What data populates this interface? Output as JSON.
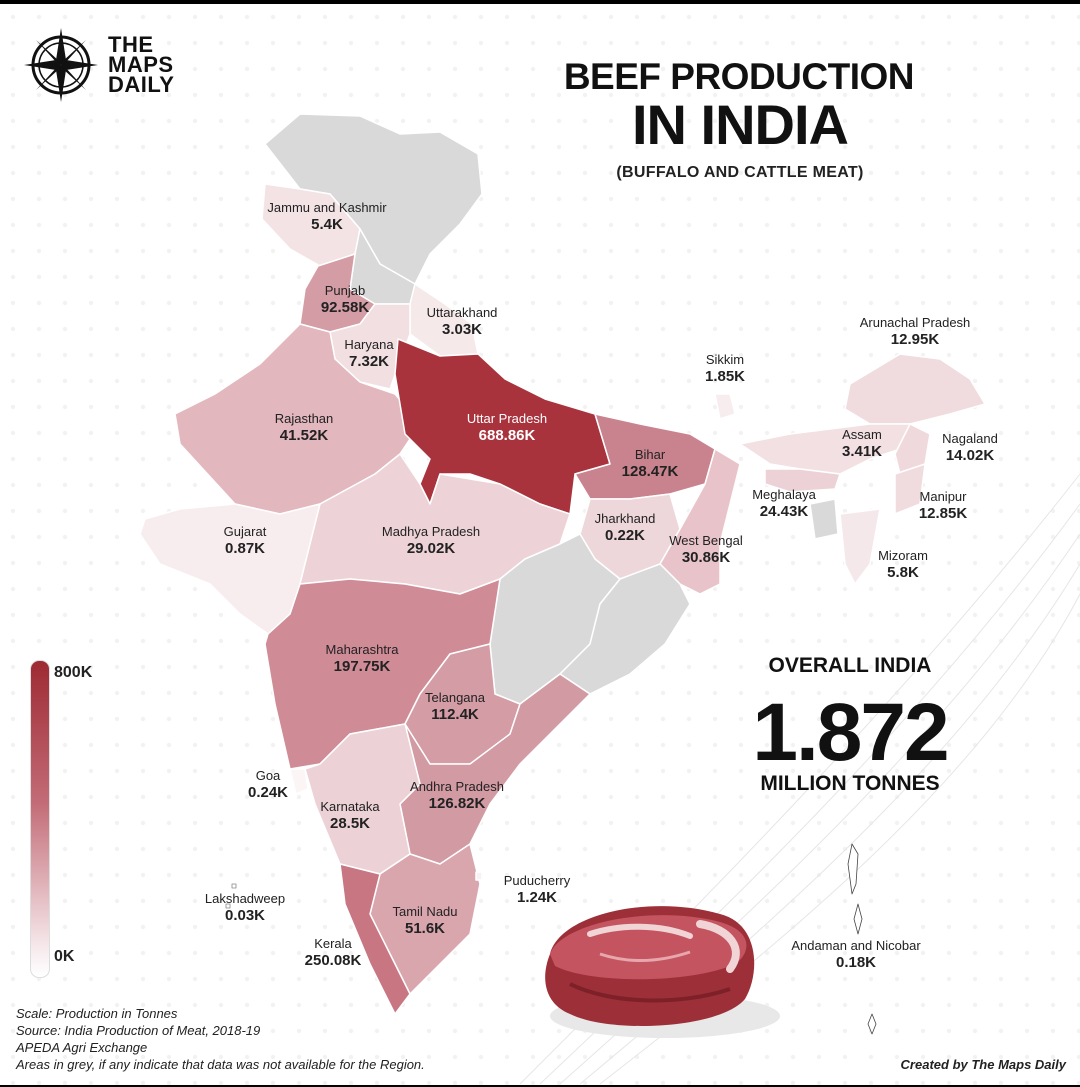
{
  "brand": {
    "line1": "THE",
    "line2": "MAPS",
    "line3": "DAILY",
    "icon": "compass-icon"
  },
  "title": {
    "line1": "BEEF PRODUCTION",
    "line2": "IN INDIA",
    "subtitle": "(BUFFALO AND CATTLE MEAT)"
  },
  "legend": {
    "max_label": "800K",
    "min_label": "0K",
    "max_value": 800000,
    "min_value": 0,
    "color_high": "#9e2a33",
    "color_low": "#ffffff",
    "no_data_color": "#d9d9d9"
  },
  "overall": {
    "label": "OVERALL INDIA",
    "value": "1.872",
    "unit": "MILLION TONNES"
  },
  "regions": [
    {
      "name": "Jammu and Kashmir",
      "value": "5.4K",
      "tonnes": 5400
    },
    {
      "name": "Punjab",
      "value": "92.58K",
      "tonnes": 92580
    },
    {
      "name": "Uttarakhand",
      "value": "3.03K",
      "tonnes": 3030
    },
    {
      "name": "Haryana",
      "value": "7.32K",
      "tonnes": 7320
    },
    {
      "name": "Rajasthan",
      "value": "41.52K",
      "tonnes": 41520
    },
    {
      "name": "Uttar Pradesh",
      "value": "688.86K",
      "tonnes": 688860
    },
    {
      "name": "Bihar",
      "value": "128.47K",
      "tonnes": 128470
    },
    {
      "name": "Sikkim",
      "value": "1.85K",
      "tonnes": 1850
    },
    {
      "name": "Arunachal Pradesh",
      "value": "12.95K",
      "tonnes": 12950
    },
    {
      "name": "Assam",
      "value": "3.41K",
      "tonnes": 3410
    },
    {
      "name": "Nagaland",
      "value": "14.02K",
      "tonnes": 14020
    },
    {
      "name": "Meghalaya",
      "value": "24.43K",
      "tonnes": 24430
    },
    {
      "name": "Manipur",
      "value": "12.85K",
      "tonnes": 12850
    },
    {
      "name": "Mizoram",
      "value": "5.8K",
      "tonnes": 5800
    },
    {
      "name": "Gujarat",
      "value": "0.87K",
      "tonnes": 870
    },
    {
      "name": "Madhya Pradesh",
      "value": "29.02K",
      "tonnes": 29020
    },
    {
      "name": "Jharkhand",
      "value": "0.22K",
      "tonnes": 220
    },
    {
      "name": "West Bengal",
      "value": "30.86K",
      "tonnes": 30860
    },
    {
      "name": "Maharashtra",
      "value": "197.75K",
      "tonnes": 197750
    },
    {
      "name": "Telangana",
      "value": "112.4K",
      "tonnes": 112400
    },
    {
      "name": "Goa",
      "value": "0.24K",
      "tonnes": 240
    },
    {
      "name": "Karnataka",
      "value": "28.5K",
      "tonnes": 28500
    },
    {
      "name": "Andhra Pradesh",
      "value": "126.82K",
      "tonnes": 126820
    },
    {
      "name": "Puducherry",
      "value": "1.24K",
      "tonnes": 1240
    },
    {
      "name": "Lakshadweep",
      "value": "0.03K",
      "tonnes": 30
    },
    {
      "name": "Tamil Nadu",
      "value": "51.6K",
      "tonnes": 51600
    },
    {
      "name": "Kerala",
      "value": "250.08K",
      "tonnes": 250080
    },
    {
      "name": "Andaman and Nicobar",
      "value": "0.18K",
      "tonnes": 180
    }
  ],
  "notes": {
    "line1": "Scale: Production in Tonnes",
    "line2": "Source: India Production of Meat, 2018-19",
    "line3": "APEDA Agri Exchange",
    "line4": "Areas in grey, if any indicate that data was not available for the Region."
  },
  "credit": "Created by The Maps Daily"
}
